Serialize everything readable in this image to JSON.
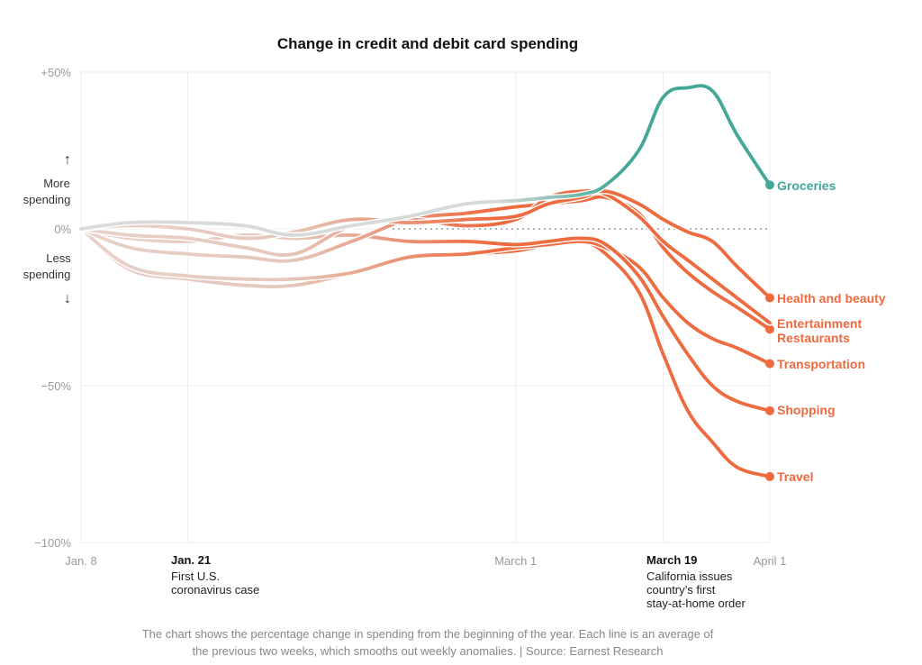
{
  "chart_data": {
    "type": "line",
    "title": "Change in credit and debit card spending",
    "x_ticks": [
      "Jan. 8",
      "March 1",
      "April 1"
    ],
    "y_ticks": [
      "+50%",
      "0%",
      "−50%",
      "−100%"
    ],
    "y_tick_values": [
      50,
      0,
      -50,
      -100
    ],
    "ylim": [
      -100,
      50
    ],
    "x_range_days": [
      0,
      84
    ],
    "axis_notes": {
      "up_arrow": "↑",
      "more_1": "More",
      "more_2": "spending",
      "less_1": "Less",
      "less_2": "spending",
      "down_arrow": "↓"
    },
    "annotations": [
      {
        "title": "Jan. 21",
        "lines": [
          "First U.S.",
          "coronavirus case"
        ]
      },
      {
        "title": "March 19",
        "lines": [
          "California issues",
          "country’s first",
          "stay-at-home order"
        ]
      }
    ],
    "annotation_x_days": [
      13,
      71
    ],
    "x": [
      0,
      6,
      13,
      20,
      26,
      33,
      40,
      47,
      53,
      57,
      61,
      64,
      68,
      71,
      74,
      77,
      80,
      84
    ],
    "series": [
      {
        "name": "Groceries",
        "color": "#43a897",
        "end_label": "Groceries",
        "values": [
          0,
          2,
          2,
          1,
          -2,
          1,
          4,
          8,
          9,
          10,
          11,
          14,
          25,
          42,
          45,
          44,
          30,
          14
        ]
      },
      {
        "name": "Health and beauty",
        "color": "#ee6a3f",
        "end_label": "Health and beauty",
        "values": [
          0,
          1,
          0,
          -3,
          -1,
          3,
          2,
          3,
          4,
          8,
          10,
          12,
          8,
          3,
          -1,
          -4,
          -12,
          -22
        ]
      },
      {
        "name": "Entertainment",
        "color": "#ee6a3f",
        "end_label": "Entertainment",
        "values": [
          0,
          -2,
          -3,
          -6,
          -8,
          1,
          3,
          1,
          3,
          10,
          12,
          11,
          4,
          -4,
          -10,
          -16,
          -22,
          -30
        ]
      },
      {
        "name": "Restaurants",
        "color": "#ee6a3f",
        "end_label": "Restaurants",
        "values": [
          0,
          -6,
          -8,
          -9,
          -10,
          -4,
          3,
          5,
          7,
          8,
          9,
          10,
          5,
          -6,
          -14,
          -20,
          -25,
          -32
        ]
      },
      {
        "name": "Transportation",
        "color": "#ee6a3f",
        "end_label": "Transportation",
        "values": [
          0,
          -12,
          -15,
          -16,
          -16,
          -14,
          -9,
          -8,
          -6,
          -5,
          -4,
          -6,
          -12,
          -22,
          -30,
          -35,
          -38,
          -43
        ]
      },
      {
        "name": "Shopping",
        "color": "#ee6a3f",
        "end_label": "Shopping",
        "values": [
          0,
          -3,
          -4,
          -2,
          -3,
          -2,
          -4,
          -4,
          -5,
          -4,
          -3,
          -5,
          -15,
          -28,
          -40,
          -50,
          -55,
          -58
        ]
      },
      {
        "name": "Travel",
        "color": "#ee6a3f",
        "end_label": "Travel",
        "values": [
          0,
          -13,
          -16,
          -18,
          -18,
          -14,
          -9,
          -8,
          -7,
          -5,
          -4,
          -8,
          -20,
          -40,
          -58,
          -68,
          -76,
          -79
        ]
      }
    ],
    "label_order_note": "",
    "grid": true
  },
  "footnote": {
    "line1": "The chart shows the percentage change in spending from the beginning of the year. Each line is an average of",
    "line2": "the previous two weeks, which smooths out weekly anomalies. | Source: Earnest Research"
  }
}
